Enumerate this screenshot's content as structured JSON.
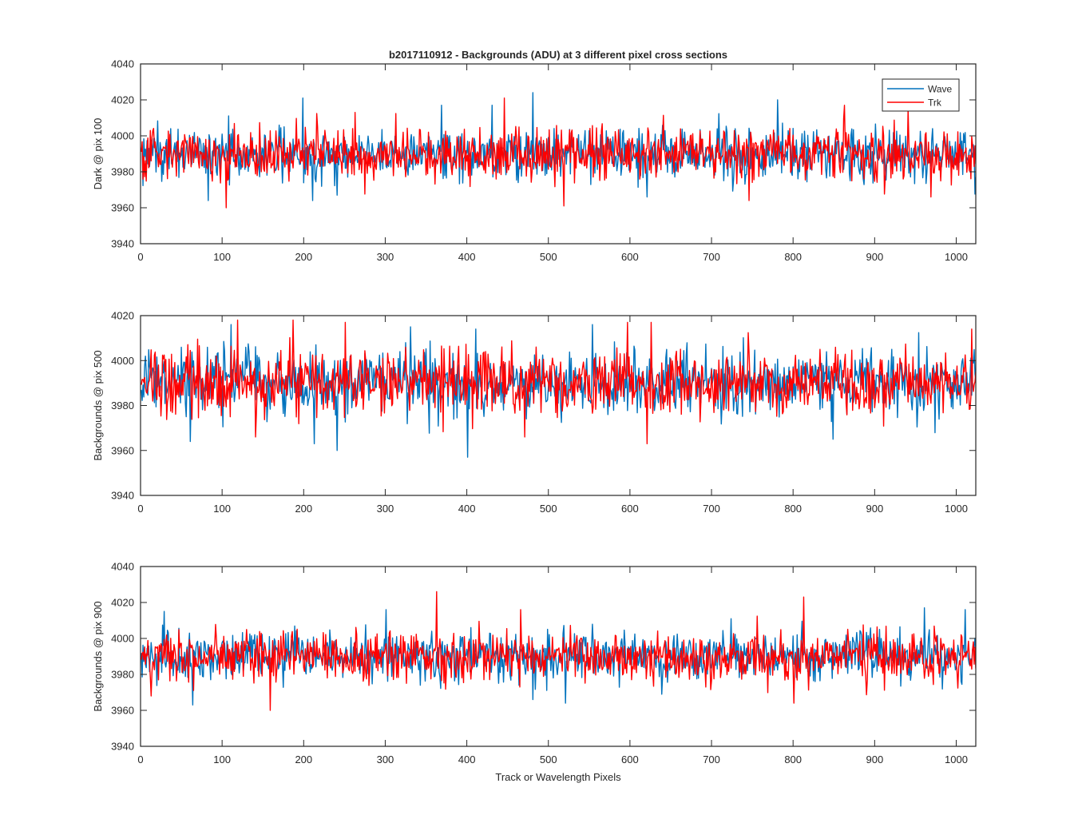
{
  "figure": {
    "title": "b2017110912 - Backgrounds (ADU) at 3 different pixel cross sections",
    "xlabel": "Track or Wavelength Pixels"
  },
  "legend": {
    "location": "top-right",
    "entries": [
      {
        "name": "Wave",
        "color": "#0072BD"
      },
      {
        "name": "Trk",
        "color": "#FF0000"
      }
    ]
  },
  "chart_data": [
    {
      "type": "line",
      "ylabel": "Dark @ pix 100",
      "xlim": [
        0,
        1024
      ],
      "ylim": [
        3940,
        4040
      ],
      "xticks": [
        0,
        100,
        200,
        300,
        400,
        500,
        600,
        700,
        800,
        900,
        1000
      ],
      "yticks": [
        3940,
        3960,
        3980,
        4000,
        4020,
        4040
      ],
      "grid": false,
      "num_points": 1024,
      "series": [
        {
          "name": "Wave",
          "color": "#0072BD",
          "mean": 3990,
          "noise_sd": 7,
          "peaks": [
            [
              198,
              4021
            ],
            [
              480,
              4024
            ],
            [
              780,
              4020
            ],
            [
              430,
              4017
            ],
            [
              368,
              4017
            ]
          ],
          "troughs": [
            [
              82,
              3964
            ],
            [
              210,
              3964
            ],
            [
              620,
              3966
            ],
            [
              240,
              3967
            ]
          ]
        },
        {
          "name": "Trk",
          "color": "#FF0000",
          "mean": 3990,
          "noise_sd": 7,
          "peaks": [
            [
              445,
              4021
            ],
            [
              862,
              4017
            ],
            [
              940,
              4015
            ],
            [
              262,
              4013
            ]
          ],
          "troughs": [
            [
              104,
              3960
            ],
            [
              518,
              3961
            ],
            [
              745,
              3964
            ],
            [
              968,
              3966
            ]
          ]
        }
      ]
    },
    {
      "type": "line",
      "ylabel": "Backgrounds @ pix 500",
      "xlim": [
        0,
        1024
      ],
      "ylim": [
        3940,
        4020
      ],
      "xticks": [
        0,
        100,
        200,
        300,
        400,
        500,
        600,
        700,
        800,
        900,
        1000
      ],
      "yticks": [
        3940,
        3960,
        3980,
        4000,
        4020
      ],
      "grid": false,
      "num_points": 1024,
      "series": [
        {
          "name": "Wave",
          "color": "#0072BD",
          "mean": 3990,
          "noise_sd": 7,
          "peaks": [
            [
              110,
              4016
            ],
            [
              330,
              4015
            ],
            [
              553,
              4016
            ],
            [
              410,
              4014
            ]
          ],
          "troughs": [
            [
              400,
              3957
            ],
            [
              60,
              3964
            ],
            [
              240,
              3960
            ],
            [
              212,
              3963
            ],
            [
              848,
              3965
            ]
          ]
        },
        {
          "name": "Trk",
          "color": "#FF0000",
          "mean": 3990,
          "noise_sd": 7,
          "peaks": [
            [
              118,
              4018
            ],
            [
              186,
              4018
            ],
            [
              250,
              4017
            ],
            [
              596,
              4017
            ],
            [
              625,
              4017
            ],
            [
              1018,
              4014
            ]
          ],
          "troughs": [
            [
              470,
              3966
            ],
            [
              620,
              3963
            ],
            [
              140,
              3966
            ]
          ]
        }
      ]
    },
    {
      "type": "line",
      "ylabel": "Backgrounds @ pix 900",
      "xlim": [
        0,
        1024
      ],
      "ylim": [
        3940,
        4040
      ],
      "xticks": [
        0,
        100,
        200,
        300,
        400,
        500,
        600,
        700,
        800,
        900,
        1000
      ],
      "yticks": [
        3940,
        3960,
        3980,
        4000,
        4020,
        4040
      ],
      "grid": false,
      "num_points": 1024,
      "series": [
        {
          "name": "Wave",
          "color": "#0072BD",
          "mean": 3990,
          "noise_sd": 7,
          "peaks": [
            [
              28,
              4015
            ],
            [
              300,
              4016
            ],
            [
              960,
              4017
            ],
            [
              1010,
              4016
            ]
          ],
          "troughs": [
            [
              63,
              3963
            ],
            [
              520,
              3964
            ],
            [
              480,
              3966
            ]
          ]
        },
        {
          "name": "Trk",
          "color": "#FF0000",
          "mean": 3990,
          "noise_sd": 7,
          "peaks": [
            [
              362,
              4026
            ],
            [
              812,
              4023
            ],
            [
              158,
              4016
            ],
            [
              465,
              4016
            ]
          ],
          "troughs": [
            [
              158,
              3960
            ],
            [
              800,
              3964
            ],
            [
              12,
              3968
            ]
          ]
        }
      ]
    }
  ]
}
